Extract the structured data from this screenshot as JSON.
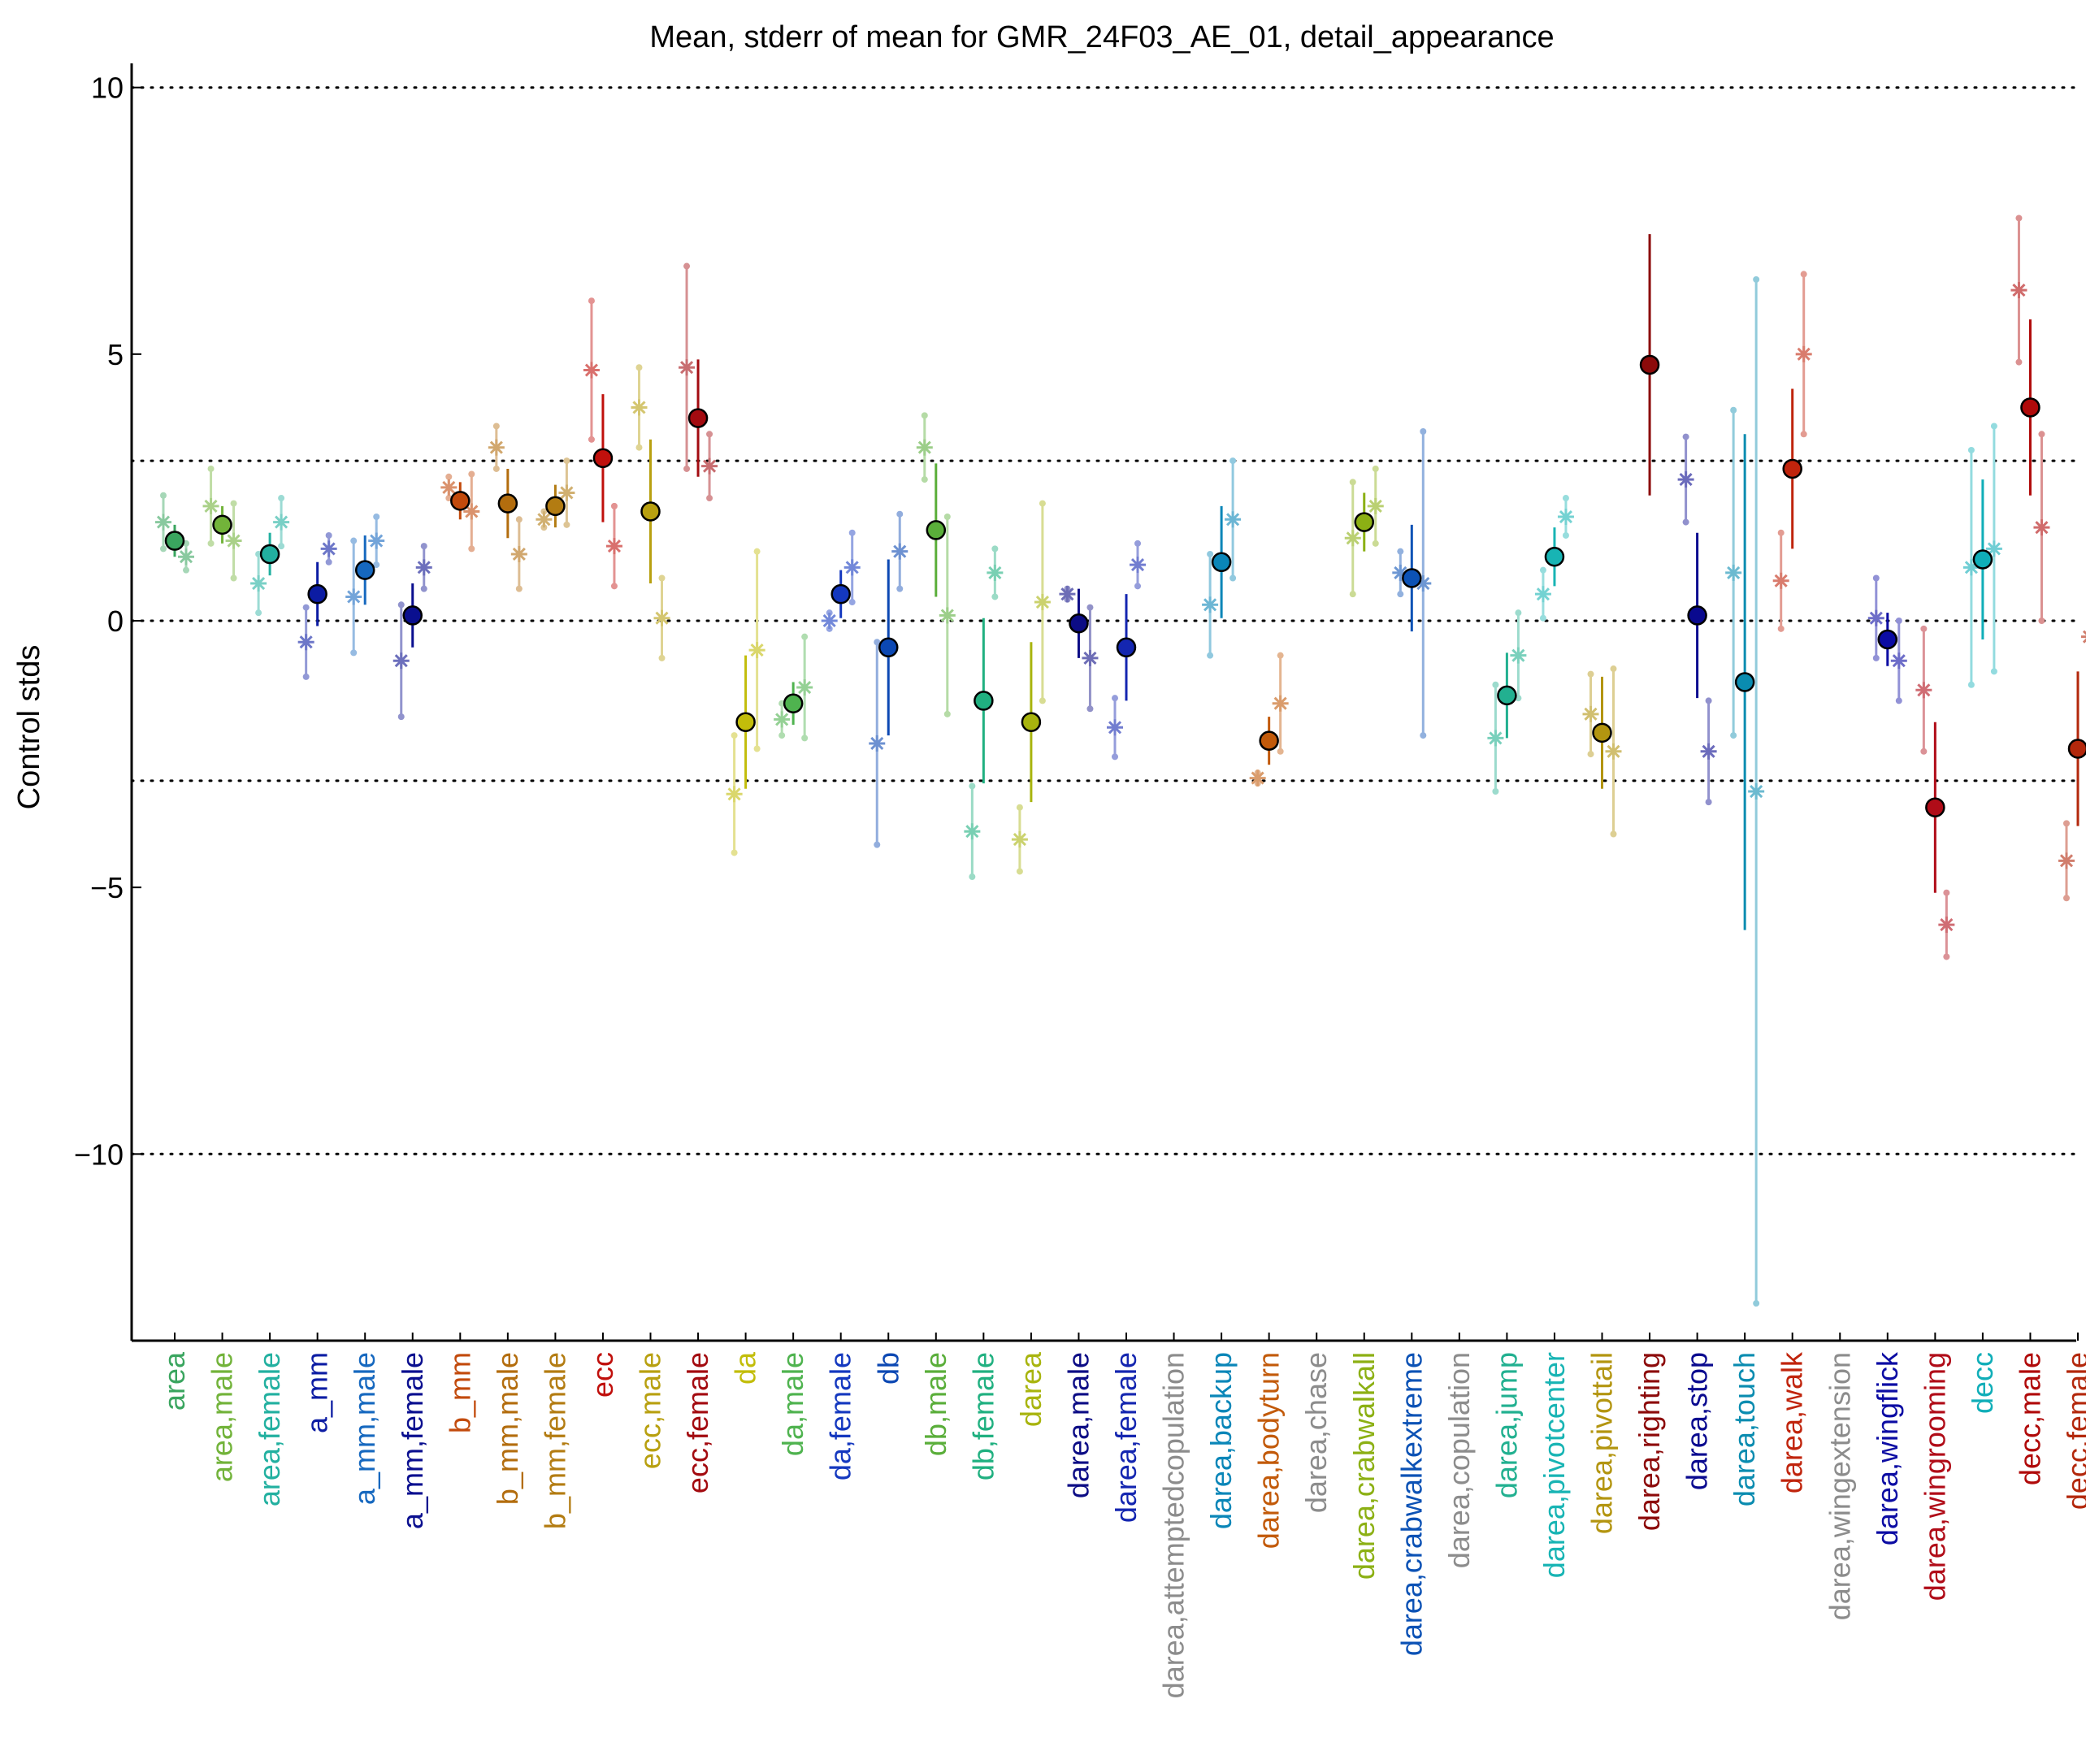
{
  "chart_data": {
    "type": "scatter",
    "title": "Mean, stderr of mean for GMR_24F03_AE_01, detail_appearance",
    "ylabel": "Control stds",
    "xlabel": "",
    "ylim": [
      -13.5,
      10.3
    ],
    "yticks": [
      10,
      5,
      0,
      -5,
      -10
    ],
    "ytick_labels": [
      "10",
      "5",
      "0",
      "−5",
      "−10"
    ],
    "hlines": [
      10,
      3,
      0,
      -3,
      -10
    ],
    "grid": false,
    "legend": "none",
    "categories": [
      {
        "label": "area",
        "color": "#3aa55f",
        "mean": 1.5,
        "err": 0.3,
        "male": 1.85,
        "female": 1.2,
        "male_err": 0.5,
        "female_err": 0.25
      },
      {
        "label": "area,male",
        "color": "#72b33a",
        "mean": 1.8,
        "err": 0.35,
        "male": 2.15,
        "female": 1.5,
        "male_err": 0.7,
        "female_err": 0.7
      },
      {
        "label": "area,female",
        "color": "#22b0a0",
        "mean": 1.25,
        "err": 0.4,
        "male": 0.7,
        "female": 1.85,
        "male_err": 0.55,
        "female_err": 0.45
      },
      {
        "label": "a_mm",
        "color": "#0c1ca3",
        "mean": 0.5,
        "err": 0.6,
        "male": -0.4,
        "female": 1.35,
        "male_err": 0.65,
        "female_err": 0.25
      },
      {
        "label": "a_mm,male",
        "color": "#1668bf",
        "mean": 0.95,
        "err": 0.65,
        "male": 0.45,
        "female": 1.5,
        "male_err": 1.05,
        "female_err": 0.45
      },
      {
        "label": "a_mm,female",
        "color": "#0a0f8f",
        "mean": 0.1,
        "err": 0.6,
        "male": -0.75,
        "female": 1.0,
        "male_err": 1.05,
        "female_err": 0.4
      },
      {
        "label": "b_mm",
        "color": "#c24a0c",
        "mean": 2.25,
        "err": 0.35,
        "male": 2.5,
        "female": 2.05,
        "male_err": 0.2,
        "female_err": 0.7
      },
      {
        "label": "b_mm,male",
        "color": "#b36d0e",
        "mean": 2.2,
        "err": 0.65,
        "male": 3.25,
        "female": 1.25,
        "male_err": 0.4,
        "female_err": 0.65
      },
      {
        "label": "b_mm,female",
        "color": "#b37c12",
        "mean": 2.15,
        "err": 0.4,
        "male": 1.9,
        "female": 2.4,
        "male_err": 0.15,
        "female_err": 0.6
      },
      {
        "label": "ecc",
        "color": "#c0100c",
        "mean": 3.05,
        "err": 1.2,
        "male": 4.7,
        "female": 1.4,
        "male_err": 1.3,
        "female_err": 0.75
      },
      {
        "label": "ecc,male",
        "color": "#b8a010",
        "mean": 2.05,
        "err": 1.35,
        "male": 4.0,
        "female": 0.05,
        "male_err": 0.75,
        "female_err": 0.75
      },
      {
        "label": "ecc,female",
        "color": "#a30b10",
        "mean": 3.8,
        "err": 1.1,
        "male": 4.75,
        "female": 2.9,
        "male_err": 1.9,
        "female_err": 0.6
      },
      {
        "label": "da",
        "color": "#c2bd0a",
        "mean": -1.9,
        "err": 1.25,
        "male": -3.25,
        "female": -0.55,
        "male_err": 1.1,
        "female_err": 1.85
      },
      {
        "label": "da,male",
        "color": "#4fb34f",
        "mean": -1.55,
        "err": 0.4,
        "male": -1.85,
        "female": -1.25,
        "male_err": 0.3,
        "female_err": 0.95
      },
      {
        "label": "da,female",
        "color": "#1438bf",
        "mean": 0.5,
        "err": 0.45,
        "male": 0.0,
        "female": 1.0,
        "male_err": 0.15,
        "female_err": 0.65
      },
      {
        "label": "db",
        "color": "#0c48b3",
        "mean": -0.5,
        "err": 1.65,
        "male": -2.3,
        "female": 1.3,
        "male_err": 1.9,
        "female_err": 0.7
      },
      {
        "label": "db,male",
        "color": "#5aae3a",
        "mean": 1.7,
        "err": 1.25,
        "male": 3.25,
        "female": 0.1,
        "male_err": 0.6,
        "female_err": 1.85
      },
      {
        "label": "db,female",
        "color": "#20b080",
        "mean": -1.5,
        "err": 1.55,
        "male": -3.95,
        "female": 0.9,
        "male_err": 0.85,
        "female_err": 0.45
      },
      {
        "label": "darea",
        "color": "#a8b40e",
        "mean": -1.9,
        "err": 1.5,
        "male": -4.1,
        "female": 0.35,
        "male_err": 0.6,
        "female_err": 1.85
      },
      {
        "label": "darea,male",
        "color": "#0c0c85",
        "mean": -0.05,
        "err": 0.65,
        "male": 0.5,
        "female": -0.7,
        "male_err": 0.1,
        "female_err": 0.95
      },
      {
        "label": "darea,female",
        "color": "#1426b0",
        "mean": -0.5,
        "err": 1.0,
        "male": -2.0,
        "female": 1.05,
        "male_err": 0.55,
        "female_err": 0.4
      },
      {
        "label": "darea,attemptedcopulation",
        "color": "#8c8c8c",
        "mean": null,
        "err": null,
        "male": null,
        "female": null,
        "male_err": null,
        "female_err": null
      },
      {
        "label": "darea,backup",
        "color": "#0a86b8",
        "mean": 1.1,
        "err": 1.05,
        "male": 0.3,
        "female": 1.9,
        "male_err": 0.95,
        "female_err": 1.1
      },
      {
        "label": "darea,bodyturn",
        "color": "#c25a0a",
        "mean": -2.25,
        "err": 0.45,
        "male": -2.95,
        "female": -1.55,
        "male_err": 0.1,
        "female_err": 0.9
      },
      {
        "label": "darea,chase",
        "color": "#8c8c8c",
        "mean": null,
        "err": null,
        "male": null,
        "female": null,
        "male_err": null,
        "female_err": null
      },
      {
        "label": "darea,crabwalkall",
        "color": "#8cb014",
        "mean": 1.85,
        "err": 0.55,
        "male": 1.55,
        "female": 2.15,
        "male_err": 1.05,
        "female_err": 0.7
      },
      {
        "label": "darea,crabwalkextreme",
        "color": "#0c52b5",
        "mean": 0.8,
        "err": 1.0,
        "male": 0.9,
        "female": 0.7,
        "male_err": 0.4,
        "female_err": 2.85
      },
      {
        "label": "darea,copulation",
        "color": "#8c8c8c",
        "mean": null,
        "err": null,
        "male": null,
        "female": null,
        "male_err": null,
        "female_err": null
      },
      {
        "label": "darea,jump",
        "color": "#22b090",
        "mean": -1.4,
        "err": 0.8,
        "male": -2.2,
        "female": -0.65,
        "male_err": 1.0,
        "female_err": 0.8
      },
      {
        "label": "darea,pivotcenter",
        "color": "#18b4b4",
        "mean": 1.2,
        "err": 0.55,
        "male": 0.5,
        "female": 1.95,
        "male_err": 0.45,
        "female_err": 0.35
      },
      {
        "label": "darea,pivottail",
        "color": "#b39510",
        "mean": -2.1,
        "err": 1.05,
        "male": -1.75,
        "female": -2.45,
        "male_err": 0.75,
        "female_err": 1.55
      },
      {
        "label": "darea,righting",
        "color": "#8c0a0a",
        "mean": 4.8,
        "err": 2.45,
        "male": null,
        "female": null,
        "male_err": null,
        "female_err": null
      },
      {
        "label": "darea,stop",
        "color": "#0a0a8f",
        "mean": 0.1,
        "err": 1.55,
        "male": 2.65,
        "female": -2.45,
        "male_err": 0.8,
        "female_err": 0.95
      },
      {
        "label": "darea,touch",
        "color": "#0a8cb0",
        "mean": -1.15,
        "err": 4.65,
        "male": 0.9,
        "female": -3.2,
        "male_err": 3.05,
        "female_err": 9.6
      },
      {
        "label": "darea,walk",
        "color": "#c0240c",
        "mean": 2.85,
        "err": 1.5,
        "male": 0.75,
        "female": 5.0,
        "male_err": 0.9,
        "female_err": 1.5
      },
      {
        "label": "darea,wingextension",
        "color": "#8c8c8c",
        "mean": null,
        "err": null,
        "male": null,
        "female": null,
        "male_err": null,
        "female_err": null
      },
      {
        "label": "darea,wingflick",
        "color": "#0c0ca3",
        "mean": -0.35,
        "err": 0.5,
        "male": 0.05,
        "female": -0.75,
        "male_err": 0.75,
        "female_err": 0.75
      },
      {
        "label": "darea,wingrooming",
        "color": "#b00c18",
        "mean": -3.5,
        "err": 1.6,
        "male": -1.3,
        "female": -5.7,
        "male_err": 1.15,
        "female_err": 0.6
      },
      {
        "label": "decc",
        "color": "#10aeb8",
        "mean": 1.15,
        "err": 1.5,
        "male": 1.0,
        "female": 1.35,
        "male_err": 2.2,
        "female_err": 2.3
      },
      {
        "label": "decc,male",
        "color": "#b00a0a",
        "mean": 4.0,
        "err": 1.65,
        "male": 6.2,
        "female": 1.75,
        "male_err": 1.35,
        "female_err": 1.75
      },
      {
        "label": "decc,female",
        "color": "#b3280c",
        "mean": -2.4,
        "err": 1.45,
        "male": -4.5,
        "female": -0.3,
        "male_err": 0.7,
        "female_err": 1.05
      }
    ]
  }
}
